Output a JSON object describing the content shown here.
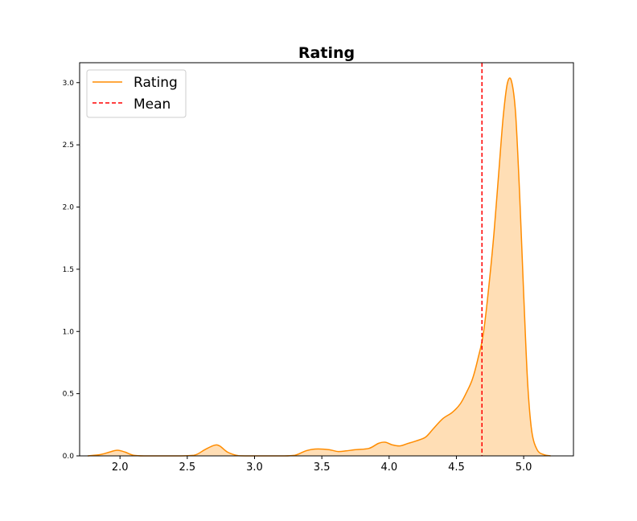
{
  "chart_data": {
    "type": "area",
    "title": "Rating",
    "xlabel": "",
    "ylabel": "",
    "xlim": [
      1.7,
      5.37
    ],
    "ylim": [
      0,
      3.16
    ],
    "xticks": [
      2.0,
      2.5,
      3.0,
      3.5,
      4.0,
      4.5,
      5.0
    ],
    "xtick_labels": [
      "2.0",
      "2.5",
      "3.0",
      "3.5",
      "4.0",
      "4.5",
      "5.0"
    ],
    "yticks": [
      0.0,
      0.5,
      1.0,
      1.5,
      2.0,
      2.5,
      3.0
    ],
    "ytick_labels": [
      "0.0",
      "0.5",
      "1.0",
      "1.5",
      "2.0",
      "2.5",
      "3.0"
    ],
    "grid": false,
    "legend_position": "upper-left",
    "series": [
      {
        "name": "Rating",
        "kind": "kde",
        "color": "#ff8c00",
        "fill": "#ffdeb5",
        "x": [
          1.76,
          1.85,
          1.92,
          1.98,
          2.04,
          2.1,
          2.2,
          2.4,
          2.55,
          2.63,
          2.7,
          2.74,
          2.8,
          2.88,
          3.0,
          3.2,
          3.3,
          3.38,
          3.45,
          3.55,
          3.62,
          3.68,
          3.75,
          3.85,
          3.92,
          3.97,
          4.02,
          4.08,
          4.14,
          4.2,
          4.27,
          4.33,
          4.4,
          4.47,
          4.53,
          4.58,
          4.62,
          4.66,
          4.7,
          4.74,
          4.78,
          4.82,
          4.85,
          4.88,
          4.91,
          4.94,
          4.97,
          5.0,
          5.03,
          5.06,
          5.1,
          5.15,
          5.2
        ],
        "y": [
          0.0,
          0.01,
          0.03,
          0.045,
          0.03,
          0.005,
          0.0,
          0.0,
          0.005,
          0.05,
          0.085,
          0.08,
          0.03,
          0.002,
          0.0,
          0.0,
          0.005,
          0.04,
          0.055,
          0.05,
          0.035,
          0.04,
          0.05,
          0.06,
          0.1,
          0.11,
          0.09,
          0.08,
          0.1,
          0.12,
          0.15,
          0.22,
          0.3,
          0.35,
          0.42,
          0.52,
          0.62,
          0.78,
          0.98,
          1.35,
          1.8,
          2.35,
          2.75,
          3.0,
          3.01,
          2.75,
          2.1,
          1.3,
          0.58,
          0.2,
          0.05,
          0.01,
          0.0
        ]
      },
      {
        "name": "Mean",
        "kind": "vline",
        "color": "#ff0000",
        "x": 4.69
      }
    ]
  }
}
